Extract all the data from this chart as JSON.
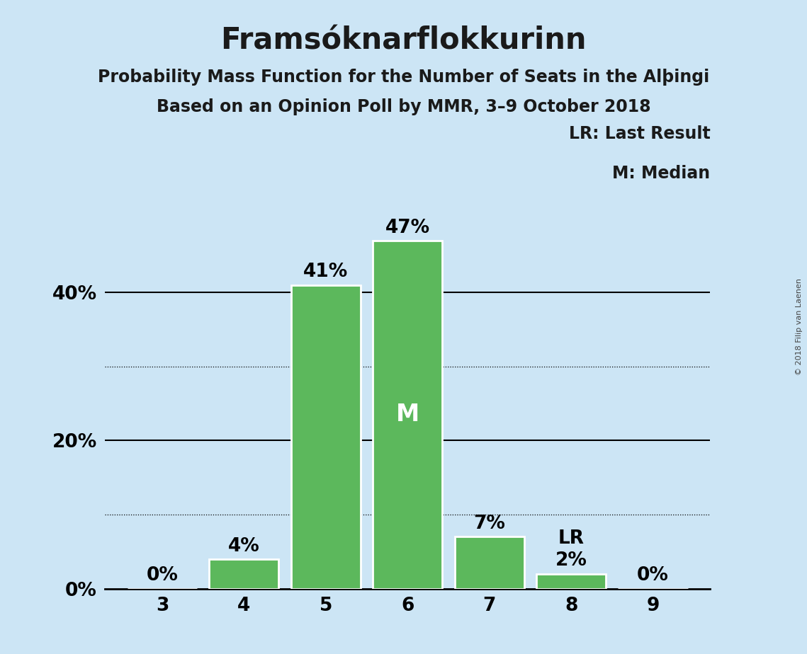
{
  "title": "Framsóknarflokkurinn",
  "subtitle1": "Probability Mass Function for the Number of Seats in the Alþingi",
  "subtitle2": "Based on an Opinion Poll by MMR, 3–9 October 2018",
  "copyright": "© 2018 Filip van Laenen",
  "categories": [
    3,
    4,
    5,
    6,
    7,
    8,
    9
  ],
  "values": [
    0,
    4,
    41,
    47,
    7,
    2,
    0
  ],
  "bar_color": "#5cb85c",
  "bar_separator_color": "#ffffff",
  "median_bar": 6,
  "last_result_bar": 8,
  "median_label": "M",
  "lr_label": "LR",
  "background_color": "#cce5f5",
  "plot_bg_color": "#cce5f5",
  "dotted_grid": [
    10,
    30
  ],
  "solid_grid": [
    20,
    40
  ],
  "ylim": [
    0,
    53
  ],
  "ytick_positions": [
    0,
    20,
    40
  ],
  "ytick_labels": [
    "0%",
    "20%",
    "40%"
  ],
  "legend_lr": "LR: Last Result",
  "legend_m": "M: Median",
  "title_fontsize": 30,
  "subtitle_fontsize": 17,
  "tick_fontsize": 19,
  "annotation_fontsize": 19,
  "median_fontsize": 24,
  "legend_fontsize": 17,
  "copyright_fontsize": 8
}
